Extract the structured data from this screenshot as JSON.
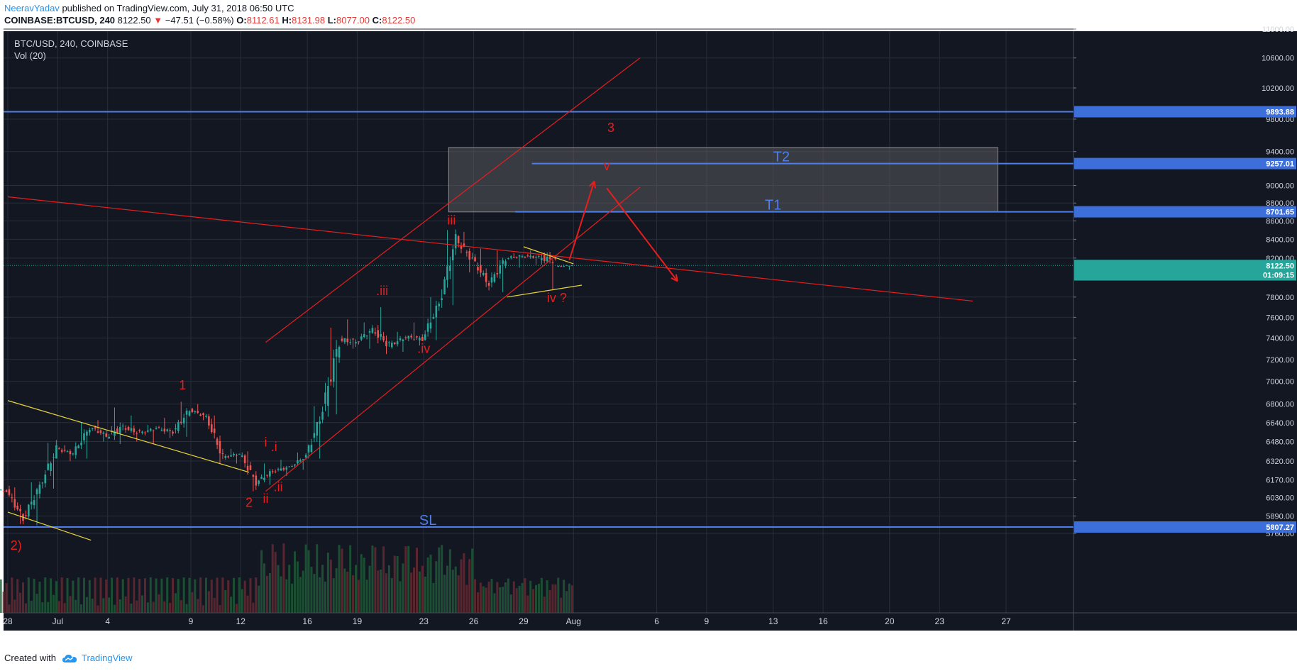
{
  "header": {
    "author": "NeeravYadav",
    "published": "published on TradingView.com, July 31, 2018 06:50 UTC",
    "symbol_line": {
      "symbol": "COINBASE:BTCUSD, 240",
      "last": "8122.50",
      "arrow": "▼",
      "change": "−47.51 (−0.58%)",
      "o_label": "O:",
      "o": "8112.61",
      "h_label": "H:",
      "h": "8131.98",
      "l_label": "L:",
      "l": "8077.00",
      "c_label": "C:",
      "c": "8122.50"
    }
  },
  "legend": {
    "title": "BTC/USD, 240, COINBASE",
    "indicator": "Vol (20)"
  },
  "footer": {
    "created_with": "Created with",
    "brand": "TradingView"
  },
  "colors": {
    "background": "#131722",
    "grid": "#2a2e39",
    "axis_text": "#d1d4dc",
    "bull": "#26a69a",
    "bear": "#ef5350",
    "annotation_red": "#e81e1e",
    "annotation_blue": "#4f7ee8",
    "yellow_line": "#e8d43a",
    "label_blue": "#3d6fdb",
    "label_green": "#26a69a"
  },
  "chart_data": {
    "type": "candlestick",
    "x_ticks": [
      "28",
      "Jul",
      "4",
      "9",
      "12",
      "16",
      "19",
      "23",
      "26",
      "29",
      "Aug",
      "6",
      "9",
      "13",
      "16",
      "20",
      "23",
      "27"
    ],
    "x_tick_dates": [
      "2018-06-28",
      "2018-07-01",
      "2018-07-04",
      "2018-07-09",
      "2018-07-12",
      "2018-07-16",
      "2018-07-19",
      "2018-07-23",
      "2018-07-26",
      "2018-07-29",
      "2018-08-01",
      "2018-08-06",
      "2018-08-09",
      "2018-08-13",
      "2018-08-16",
      "2018-08-20",
      "2018-08-23",
      "2018-08-27"
    ],
    "y_ticks": [
      "11000.00",
      "10600.00",
      "10200.00",
      "9800.00",
      "9400.00",
      "9000.00",
      "8800.00",
      "8600.00",
      "8400.00",
      "8200.00",
      "7800.00",
      "7600.00",
      "7400.00",
      "7200.00",
      "7000.00",
      "6800.00",
      "6640.00",
      "6480.00",
      "6320.00",
      "6170.00",
      "6030.00",
      "5890.00",
      "5760.00"
    ],
    "y_scale": "log",
    "price_labels": [
      {
        "price": 9893.88,
        "text": "9893.88",
        "color": "blue"
      },
      {
        "price": 9257.01,
        "text": "9257.01",
        "color": "blue"
      },
      {
        "price": 8701.65,
        "text": "8701.65",
        "color": "blue"
      },
      {
        "price": 8122.5,
        "text": "8122.50",
        "color": "green"
      },
      {
        "price": 8025.0,
        "text": "01:09:15",
        "color": "green"
      },
      {
        "price": 5807.27,
        "text": "5807.27",
        "color": "blue"
      }
    ],
    "horizontal_lines": [
      {
        "price": 9893.88,
        "label": ""
      },
      {
        "price": 9257.01,
        "label": "T2"
      },
      {
        "price": 8701.65,
        "label": "T1"
      },
      {
        "price": 5807.27,
        "label": "SL"
      }
    ],
    "current_price": 8122.5,
    "target_zone": {
      "price_low": 8700,
      "price_high": 9450,
      "date_start": "2018-07-24 12:00",
      "date_end": "2018-08-26 12:00"
    },
    "candles_daily": [
      {
        "date": "2018-06-27",
        "o": 6100,
        "h": 6130,
        "l": 6040,
        "c": 6080
      },
      {
        "date": "2018-06-28",
        "o": 6080,
        "h": 6110,
        "l": 5830,
        "c": 5870
      },
      {
        "date": "2018-06-29",
        "o": 5870,
        "h": 6150,
        "l": 5820,
        "c": 6120
      },
      {
        "date": "2018-06-30",
        "o": 6120,
        "h": 6470,
        "l": 6100,
        "c": 6420
      },
      {
        "date": "2018-07-01",
        "o": 6420,
        "h": 6450,
        "l": 6320,
        "c": 6380
      },
      {
        "date": "2018-07-02",
        "o": 6380,
        "h": 6640,
        "l": 6340,
        "c": 6600
      },
      {
        "date": "2018-07-03",
        "o": 6600,
        "h": 6660,
        "l": 6480,
        "c": 6530
      },
      {
        "date": "2018-07-04",
        "o": 6530,
        "h": 6770,
        "l": 6460,
        "c": 6600
      },
      {
        "date": "2018-07-05",
        "o": 6600,
        "h": 6700,
        "l": 6480,
        "c": 6550
      },
      {
        "date": "2018-07-06",
        "o": 6550,
        "h": 6620,
        "l": 6460,
        "c": 6590
      },
      {
        "date": "2018-07-07",
        "o": 6590,
        "h": 6680,
        "l": 6510,
        "c": 6560
      },
      {
        "date": "2018-07-08",
        "o": 6560,
        "h": 6820,
        "l": 6520,
        "c": 6750
      },
      {
        "date": "2018-07-09",
        "o": 6750,
        "h": 6800,
        "l": 6660,
        "c": 6690
      },
      {
        "date": "2018-07-10",
        "o": 6690,
        "h": 6700,
        "l": 6300,
        "c": 6350
      },
      {
        "date": "2018-07-11",
        "o": 6350,
        "h": 6420,
        "l": 6300,
        "c": 6380
      },
      {
        "date": "2018-07-12",
        "o": 6380,
        "h": 6400,
        "l": 6080,
        "c": 6150
      },
      {
        "date": "2018-07-13",
        "o": 6150,
        "h": 6300,
        "l": 6130,
        "c": 6240
      },
      {
        "date": "2018-07-14",
        "o": 6240,
        "h": 6330,
        "l": 6200,
        "c": 6270
      },
      {
        "date": "2018-07-15",
        "o": 6270,
        "h": 6390,
        "l": 6250,
        "c": 6360
      },
      {
        "date": "2018-07-16",
        "o": 6360,
        "h": 6780,
        "l": 6340,
        "c": 6740
      },
      {
        "date": "2018-07-17",
        "o": 6740,
        "h": 7500,
        "l": 6710,
        "c": 7380
      },
      {
        "date": "2018-07-18",
        "o": 7380,
        "h": 7580,
        "l": 7300,
        "c": 7370
      },
      {
        "date": "2018-07-19",
        "o": 7370,
        "h": 7550,
        "l": 7300,
        "c": 7480
      },
      {
        "date": "2018-07-20",
        "o": 7480,
        "h": 7700,
        "l": 7250,
        "c": 7330
      },
      {
        "date": "2018-07-21",
        "o": 7330,
        "h": 7460,
        "l": 7270,
        "c": 7410
      },
      {
        "date": "2018-07-22",
        "o": 7410,
        "h": 7550,
        "l": 7330,
        "c": 7390
      },
      {
        "date": "2018-07-23",
        "o": 7390,
        "h": 7800,
        "l": 7380,
        "c": 7740
      },
      {
        "date": "2018-07-24",
        "o": 7740,
        "h": 8500,
        "l": 7720,
        "c": 8400
      },
      {
        "date": "2018-07-25",
        "o": 8400,
        "h": 8480,
        "l": 8050,
        "c": 8180
      },
      {
        "date": "2018-07-26",
        "o": 8180,
        "h": 8300,
        "l": 7900,
        "c": 7930
      },
      {
        "date": "2018-07-27",
        "o": 7930,
        "h": 8280,
        "l": 7850,
        "c": 8200
      },
      {
        "date": "2018-07-28",
        "o": 8200,
        "h": 8250,
        "l": 8100,
        "c": 8220
      },
      {
        "date": "2018-07-29",
        "o": 8220,
        "h": 8280,
        "l": 8130,
        "c": 8210
      },
      {
        "date": "2018-07-30",
        "o": 8210,
        "h": 8260,
        "l": 7870,
        "c": 8170
      },
      {
        "date": "2018-07-31",
        "o": 8112.61,
        "h": 8131.98,
        "l": 8077.0,
        "c": 8122.5
      }
    ]
  },
  "annotations": {
    "wave_labels": [
      {
        "text": "1",
        "date": "2018-07-08 12:00",
        "price": 6930
      },
      {
        "text": "2",
        "date": "2018-07-12 12:00",
        "price": 5960
      },
      {
        "text": "i",
        "date": "2018-07-13 12:00",
        "price": 6440
      },
      {
        "text": ".i",
        "date": "2018-07-14",
        "price": 6400
      },
      {
        "text": "ii",
        "date": "2018-07-13 12:00",
        "price": 5990
      },
      {
        "text": ".ii",
        "date": "2018-07-14 06:00",
        "price": 6080
      },
      {
        "text": ".iii",
        "date": "2018-07-20 12:00",
        "price": 7820
      },
      {
        "text": ".iv",
        "date": "2018-07-23",
        "price": 7260
      },
      {
        "text": "iii",
        "date": "2018-07-24 16:00",
        "price": 8560
      },
      {
        "text": "iv ?",
        "date": "2018-07-31",
        "price": 7750
      },
      {
        "text": "3",
        "date": "2018-08-03 06:00",
        "price": 9640
      },
      {
        "text": "v",
        "date": "2018-08-03",
        "price": 9180
      },
      {
        "text": "2)",
        "date": "2018-06-28 12:00",
        "price": 5640
      }
    ]
  }
}
